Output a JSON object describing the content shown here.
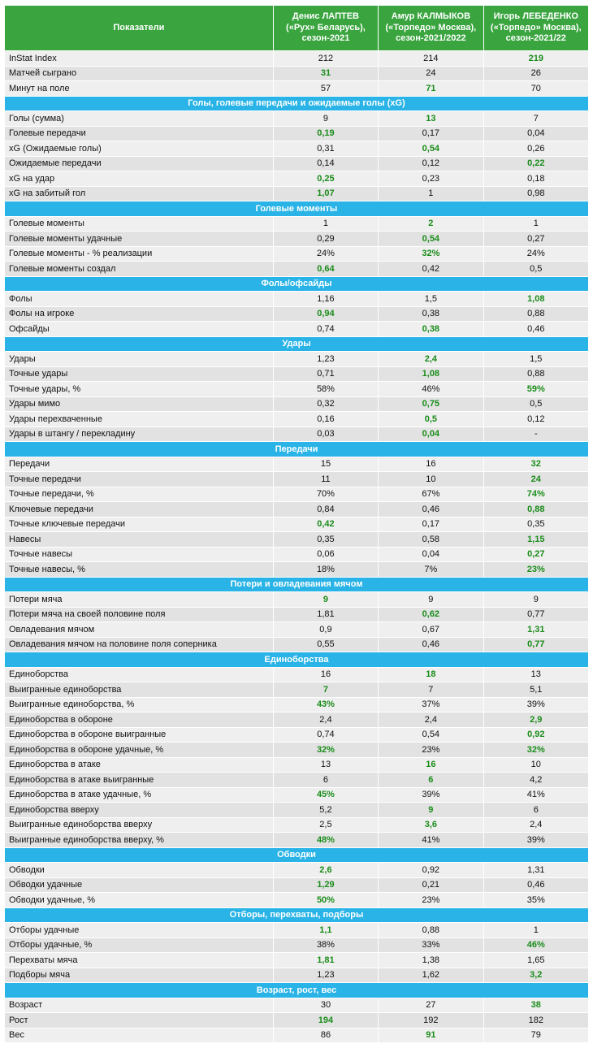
{
  "colors": {
    "header_bg": "#3aa53f",
    "header_text": "#ffffff",
    "section_bg": "#29b3e6",
    "row_light": "#efefef",
    "row_dark": "#e2e2e2",
    "best_value": "#1a8c1a"
  },
  "chart_data": {
    "type": "table",
    "columns": [
      "Показатели",
      "Денис ЛАПТЕВ («Рух» Беларусь), сезон-2021",
      "Амур КАЛМЫКОВ («Торпедо» Москва), сезон-2021/2022",
      "Игорь ЛЕБЕДЕНКО («Торпедо» Москва), сезон-2021/22"
    ],
    "highlight_meaning": "best value among players shown bold green",
    "sections": [
      {
        "title": "",
        "rows": [
          {
            "label": "InStat Index",
            "values": [
              "212",
              "214",
              "219"
            ],
            "highlight": [
              false,
              false,
              true
            ]
          },
          {
            "label": "Матчей сыграно",
            "values": [
              "31",
              "24",
              "26"
            ],
            "highlight": [
              true,
              false,
              false
            ]
          },
          {
            "label": "Минут на поле",
            "values": [
              "57",
              "71",
              "70"
            ],
            "highlight": [
              false,
              true,
              false
            ]
          }
        ]
      },
      {
        "title": "Голы, голевые передачи и ожидаемые голы (xG)",
        "rows": [
          {
            "label": "Голы (сумма)",
            "values": [
              "9",
              "13",
              "7"
            ],
            "highlight": [
              false,
              true,
              false
            ]
          },
          {
            "label": "Голевые передачи",
            "values": [
              "0,19",
              "0,17",
              "0,04"
            ],
            "highlight": [
              true,
              false,
              false
            ]
          },
          {
            "label": "xG (Ожидаемые голы)",
            "values": [
              "0,31",
              "0,54",
              "0,26"
            ],
            "highlight": [
              false,
              true,
              false
            ]
          },
          {
            "label": "Ожидаемые передачи",
            "values": [
              "0,14",
              "0,12",
              "0,22"
            ],
            "highlight": [
              false,
              false,
              true
            ]
          },
          {
            "label": "xG на удар",
            "values": [
              "0,25",
              "0,23",
              "0,18"
            ],
            "highlight": [
              true,
              false,
              false
            ]
          },
          {
            "label": "xG на забитый гол",
            "values": [
              "1,07",
              "1",
              "0,98"
            ],
            "highlight": [
              true,
              false,
              false
            ]
          }
        ]
      },
      {
        "title": "Голевые моменты",
        "rows": [
          {
            "label": "Голевые моменты",
            "values": [
              "1",
              "2",
              "1"
            ],
            "highlight": [
              false,
              true,
              false
            ]
          },
          {
            "label": "Голевые моменты удачные",
            "values": [
              "0,29",
              "0,54",
              "0,27"
            ],
            "highlight": [
              false,
              true,
              false
            ]
          },
          {
            "label": "Голевые моменты - % реализации",
            "values": [
              "24%",
              "32%",
              "24%"
            ],
            "highlight": [
              false,
              true,
              false
            ]
          },
          {
            "label": "Голевые моменты создал",
            "values": [
              "0,64",
              "0,42",
              "0,5"
            ],
            "highlight": [
              true,
              false,
              false
            ]
          }
        ]
      },
      {
        "title": "Фолы/офсайды",
        "rows": [
          {
            "label": "Фолы",
            "values": [
              "1,16",
              "1,5",
              "1,08"
            ],
            "highlight": [
              false,
              false,
              true
            ]
          },
          {
            "label": "Фолы на игроке",
            "values": [
              "0,94",
              "0,38",
              "0,88"
            ],
            "highlight": [
              true,
              false,
              false
            ]
          },
          {
            "label": "Офсайды",
            "values": [
              "0,74",
              "0,38",
              "0,46"
            ],
            "highlight": [
              false,
              true,
              false
            ]
          }
        ]
      },
      {
        "title": "Удары",
        "rows": [
          {
            "label": "Удары",
            "values": [
              "1,23",
              "2,4",
              "1,5"
            ],
            "highlight": [
              false,
              true,
              false
            ]
          },
          {
            "label": "Точные удары",
            "values": [
              "0,71",
              "1,08",
              "0,88"
            ],
            "highlight": [
              false,
              true,
              false
            ]
          },
          {
            "label": "Точные удары, %",
            "values": [
              "58%",
              "46%",
              "59%"
            ],
            "highlight": [
              false,
              false,
              true
            ]
          },
          {
            "label": "Удары мимо",
            "values": [
              "0,32",
              "0,75",
              "0,5"
            ],
            "highlight": [
              false,
              true,
              false
            ]
          },
          {
            "label": "Удары перехваченные",
            "values": [
              "0,16",
              "0,5",
              "0,12"
            ],
            "highlight": [
              false,
              true,
              false
            ]
          },
          {
            "label": "Удары в штангу / перекладину",
            "values": [
              "0,03",
              "0,04",
              "-"
            ],
            "highlight": [
              false,
              true,
              false
            ]
          }
        ]
      },
      {
        "title": "Передачи",
        "rows": [
          {
            "label": "Передачи",
            "values": [
              "15",
              "16",
              "32"
            ],
            "highlight": [
              false,
              false,
              true
            ]
          },
          {
            "label": "Точные передачи",
            "values": [
              "11",
              "10",
              "24"
            ],
            "highlight": [
              false,
              false,
              true
            ]
          },
          {
            "label": "Точные передачи, %",
            "values": [
              "70%",
              "67%",
              "74%"
            ],
            "highlight": [
              false,
              false,
              true
            ]
          },
          {
            "label": "Ключевые передачи",
            "values": [
              "0,84",
              "0,46",
              "0,88"
            ],
            "highlight": [
              false,
              false,
              true
            ]
          },
          {
            "label": "Точные ключевые передачи",
            "values": [
              "0,42",
              "0,17",
              "0,35"
            ],
            "highlight": [
              true,
              false,
              false
            ]
          },
          {
            "label": "Навесы",
            "values": [
              "0,35",
              "0,58",
              "1,15"
            ],
            "highlight": [
              false,
              false,
              true
            ]
          },
          {
            "label": "Точные навесы",
            "values": [
              "0,06",
              "0,04",
              "0,27"
            ],
            "highlight": [
              false,
              false,
              true
            ]
          },
          {
            "label": "Точные навесы, %",
            "values": [
              "18%",
              "7%",
              "23%"
            ],
            "highlight": [
              false,
              false,
              true
            ]
          }
        ]
      },
      {
        "title": "Потери и овладевания мячом",
        "rows": [
          {
            "label": "Потери мяча",
            "values": [
              "9",
              "9",
              "9"
            ],
            "highlight": [
              true,
              false,
              false
            ]
          },
          {
            "label": "Потери мяча на своей половине поля",
            "values": [
              "1,81",
              "0,62",
              "0,77"
            ],
            "highlight": [
              false,
              true,
              false
            ]
          },
          {
            "label": "Овладевания мячом",
            "values": [
              "0,9",
              "0,67",
              "1,31"
            ],
            "highlight": [
              false,
              false,
              true
            ]
          },
          {
            "label": "Овладевания мячом на половине поля соперника",
            "values": [
              "0,55",
              "0,46",
              "0,77"
            ],
            "highlight": [
              false,
              false,
              true
            ]
          }
        ]
      },
      {
        "title": "Единоборства",
        "rows": [
          {
            "label": "Единоборства",
            "values": [
              "16",
              "18",
              "13"
            ],
            "highlight": [
              false,
              true,
              false
            ]
          },
          {
            "label": "Выигранные единоборства",
            "values": [
              "7",
              "7",
              "5,1"
            ],
            "highlight": [
              true,
              false,
              false
            ]
          },
          {
            "label": "Выигранные единоборства, %",
            "values": [
              "43%",
              "37%",
              "39%"
            ],
            "highlight": [
              true,
              false,
              false
            ]
          },
          {
            "label": "Единоборства в обороне",
            "values": [
              "2,4",
              "2,4",
              "2,9"
            ],
            "highlight": [
              false,
              false,
              true
            ]
          },
          {
            "label": "Единоборства в обороне выигранные",
            "values": [
              "0,74",
              "0,54",
              "0,92"
            ],
            "highlight": [
              false,
              false,
              true
            ]
          },
          {
            "label": "Единоборства в обороне удачные, %",
            "values": [
              "32%",
              "23%",
              "32%"
            ],
            "highlight": [
              true,
              false,
              true
            ]
          },
          {
            "label": "Единоборства в атаке",
            "values": [
              "13",
              "16",
              "10"
            ],
            "highlight": [
              false,
              true,
              false
            ]
          },
          {
            "label": "Единоборства в атаке выигранные",
            "values": [
              "6",
              "6",
              "4,2"
            ],
            "highlight": [
              false,
              true,
              false
            ]
          },
          {
            "label": "Единоборства в атаке удачные, %",
            "values": [
              "45%",
              "39%",
              "41%"
            ],
            "highlight": [
              true,
              false,
              false
            ]
          },
          {
            "label": "Единоборства вверху",
            "values": [
              "5,2",
              "9",
              "6"
            ],
            "highlight": [
              false,
              true,
              false
            ]
          },
          {
            "label": "Выигранные единоборства вверху",
            "values": [
              "2,5",
              "3,6",
              "2,4"
            ],
            "highlight": [
              false,
              true,
              false
            ]
          },
          {
            "label": "Выигранные единоборства вверху, %",
            "values": [
              "48%",
              "41%",
              "39%"
            ],
            "highlight": [
              true,
              false,
              false
            ]
          }
        ]
      },
      {
        "title": "Обводки",
        "rows": [
          {
            "label": "Обводки",
            "values": [
              "2,6",
              "0,92",
              "1,31"
            ],
            "highlight": [
              true,
              false,
              false
            ]
          },
          {
            "label": "Обводки удачные",
            "values": [
              "1,29",
              "0,21",
              "0,46"
            ],
            "highlight": [
              true,
              false,
              false
            ]
          },
          {
            "label": "Обводки удачные, %",
            "values": [
              "50%",
              "23%",
              "35%"
            ],
            "highlight": [
              true,
              false,
              false
            ]
          }
        ]
      },
      {
        "title": "Отборы, перехваты, подборы",
        "rows": [
          {
            "label": "Отборы удачные",
            "values": [
              "1,1",
              "0,88",
              "1"
            ],
            "highlight": [
              true,
              false,
              false
            ]
          },
          {
            "label": "Отборы удачные, %",
            "values": [
              "38%",
              "33%",
              "46%"
            ],
            "highlight": [
              false,
              false,
              true
            ]
          },
          {
            "label": "Перехваты мяча",
            "values": [
              "1,81",
              "1,38",
              "1,65"
            ],
            "highlight": [
              true,
              false,
              false
            ]
          },
          {
            "label": "Подборы мяча",
            "values": [
              "1,23",
              "1,62",
              "3,2"
            ],
            "highlight": [
              false,
              false,
              true
            ]
          }
        ]
      },
      {
        "title": "Возраст, рост, вес",
        "rows": [
          {
            "label": "Возраст",
            "values": [
              "30",
              "27",
              "38"
            ],
            "highlight": [
              false,
              false,
              true
            ]
          },
          {
            "label": "Рост",
            "values": [
              "194",
              "192",
              "182"
            ],
            "highlight": [
              true,
              false,
              false
            ]
          },
          {
            "label": "Вес",
            "values": [
              "86",
              "91",
              "79"
            ],
            "highlight": [
              false,
              true,
              false
            ]
          }
        ]
      }
    ]
  }
}
